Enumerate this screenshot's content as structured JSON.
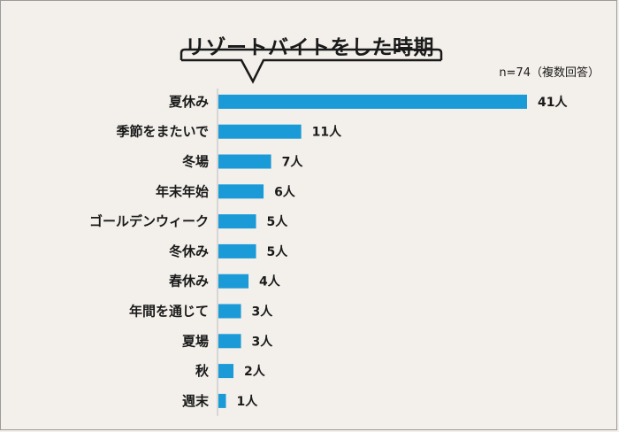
{
  "chart_data": {
    "type": "bar",
    "orientation": "horizontal",
    "title": "リゾートバイトをした時期",
    "note": "n=74（複数回答）",
    "unit": "人",
    "categories": [
      "夏休み",
      "季節をまたいで",
      "冬場",
      "年末年始",
      "ゴールデンウィーク",
      "冬休み",
      "春休み",
      "年間を通じて",
      "夏場",
      "秋",
      "週末"
    ],
    "values": [
      41,
      11,
      7,
      6,
      5,
      5,
      4,
      3,
      3,
      2,
      1
    ],
    "value_labels": [
      "41人",
      "11人",
      "7人",
      "6人",
      "5人",
      "5人",
      "4人",
      "3人",
      "3人",
      "2人",
      "1人"
    ],
    "xlim": [
      0,
      41
    ],
    "grid": false,
    "legend": "none"
  },
  "colors": {
    "bar": "#1a9ad6",
    "background": "#f3f0eb",
    "axis": "#bdbdbd"
  }
}
